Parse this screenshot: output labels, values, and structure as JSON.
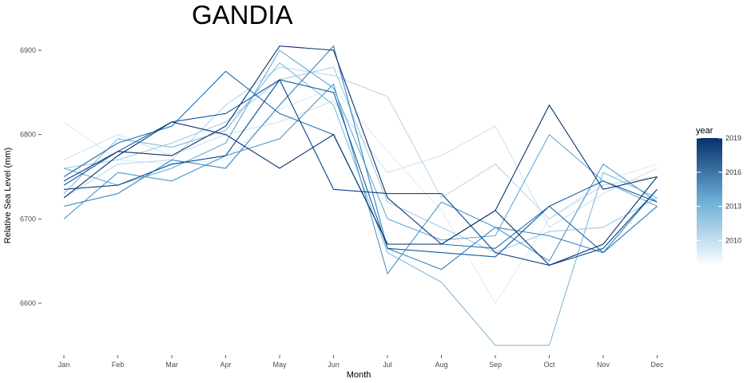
{
  "chart_data": {
    "type": "line",
    "title": "GANDIA",
    "xlabel": "Month",
    "ylabel": "Relative Sea Level (mm)",
    "categories": [
      "Jan",
      "Feb",
      "Mar",
      "Apr",
      "May",
      "Jun",
      "Jul",
      "Aug",
      "Sep",
      "Oct",
      "Nov",
      "Dec"
    ],
    "yticks": [
      6600,
      6700,
      6800,
      6900
    ],
    "ylim": [
      6540,
      6920
    ],
    "grid": false,
    "legend": {
      "title": "year",
      "position": "right",
      "type": "colorbar",
      "range": [
        2008,
        2019
      ],
      "ticks": [
        2010,
        2013,
        2016,
        2019
      ],
      "color_low": "#f7fbff",
      "color_high": "#08306b"
    },
    "series": [
      {
        "year": 2008,
        "values": [
          6815,
          6770,
          6765,
          6770,
          6830,
          6855,
          6780,
          6710,
          6600,
          6700,
          6745,
          6765
        ]
      },
      {
        "year": 2009,
        "values": [
          6770,
          6800,
          6775,
          6800,
          6815,
          6840,
          6755,
          6775,
          6810,
          6690,
          6730,
          6760
        ]
      },
      {
        "year": 2010,
        "values": [
          6725,
          6765,
          6770,
          6835,
          6880,
          6870,
          6845,
          6725,
          6765,
          6700,
          6740,
          6750
        ]
      },
      {
        "year": 2011,
        "values": [
          6760,
          6770,
          6790,
          6815,
          6865,
          6880,
          6720,
          6690,
          6660,
          6685,
          6690,
          6725
        ]
      },
      {
        "year": 2012,
        "values": [
          6730,
          6795,
          6785,
          6805,
          6885,
          6835,
          6660,
          6625,
          6550,
          6550,
          6755,
          6725
        ]
      },
      {
        "year": 2013,
        "values": [
          6760,
          6740,
          6760,
          6790,
          6900,
          6855,
          6700,
          6675,
          6680,
          6800,
          6745,
          6715
        ]
      },
      {
        "year": 2014,
        "values": [
          6700,
          6755,
          6745,
          6775,
          6795,
          6860,
          6635,
          6720,
          6690,
          6650,
          6765,
          6720
        ]
      },
      {
        "year": 2015,
        "values": [
          6715,
          6730,
          6770,
          6760,
          6835,
          6905,
          6665,
          6640,
          6690,
          6680,
          6660,
          6735
        ]
      },
      {
        "year": 2016,
        "values": [
          6750,
          6790,
          6810,
          6875,
          6825,
          6800,
          6670,
          6670,
          6665,
          6715,
          6660,
          6715
        ]
      },
      {
        "year": 2017,
        "values": [
          6740,
          6780,
          6815,
          6825,
          6865,
          6850,
          6665,
          6660,
          6655,
          6715,
          6745,
          6720
        ]
      },
      {
        "year": 2018,
        "values": [
          6735,
          6740,
          6765,
          6775,
          6865,
          6735,
          6730,
          6730,
          6660,
          6645,
          6665,
          6735
        ]
      },
      {
        "year": 2019,
        "values": [
          6745,
          6780,
          6775,
          6810,
          6905,
          6900,
          6725,
          6670,
          6710,
          6835,
          6735,
          6750
        ]
      },
      {
        "year": 2019,
        "values": [
          6725,
          6775,
          6815,
          6800,
          6760,
          6800,
          6670,
          6670,
          6710,
          6645,
          6670,
          6750
        ]
      }
    ]
  }
}
